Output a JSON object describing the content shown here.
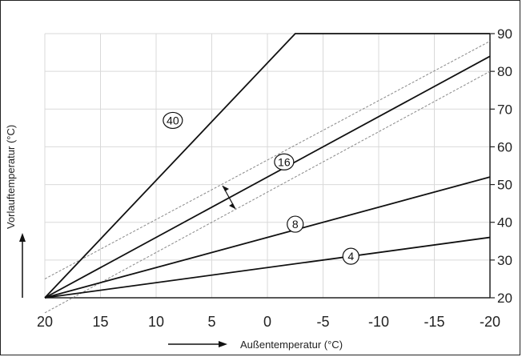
{
  "chart_data": {
    "type": "line",
    "title": "",
    "xlabel": "Außentemperatur (°C)",
    "ylabel": "Vorlauftemperatur (°C)",
    "xlim": [
      20,
      -20
    ],
    "ylim": [
      20,
      90
    ],
    "x_ticks": [
      "20",
      "15",
      "10",
      "5",
      "0",
      "-5",
      "-10",
      "-15",
      "-20"
    ],
    "x_tick_values": [
      20,
      15,
      10,
      5,
      0,
      -5,
      -10,
      -15,
      -20
    ],
    "y_ticks": [
      "20",
      "30",
      "40",
      "50",
      "60",
      "70",
      "80",
      "90"
    ],
    "y_tick_values": [
      20,
      30,
      40,
      50,
      60,
      70,
      80,
      90
    ],
    "grid": true,
    "series": [
      {
        "name": "40",
        "x": [
          20,
          -2.5,
          -20
        ],
        "y": [
          20,
          90,
          90
        ]
      },
      {
        "name": "16",
        "x": [
          20,
          -20
        ],
        "y": [
          20,
          84
        ]
      },
      {
        "name": "8",
        "x": [
          20,
          -20
        ],
        "y": [
          20,
          52
        ]
      },
      {
        "name": "4",
        "x": [
          20,
          -20
        ],
        "y": [
          20,
          36
        ]
      }
    ],
    "tolerance_band": {
      "x": [
        20,
        -20
      ],
      "upper_y": [
        25,
        88
      ],
      "lower_y": [
        16,
        80
      ]
    },
    "curve_labels": [
      {
        "text": "40",
        "x": 8.5,
        "y": 67
      },
      {
        "text": "16",
        "x": -1.5,
        "y": 56
      },
      {
        "text": "8",
        "x": -2.5,
        "y": 39.5
      },
      {
        "text": "4",
        "x": -7.5,
        "y": 31
      }
    ]
  }
}
